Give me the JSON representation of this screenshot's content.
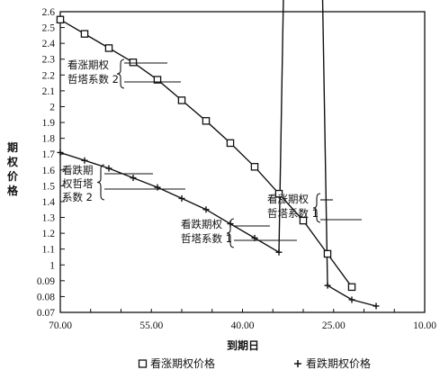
{
  "chart_data": {
    "type": "line",
    "x": [
      70,
      65,
      60,
      55,
      50,
      45,
      40,
      35,
      30,
      25,
      20,
      15,
      10
    ],
    "xticks": [
      "70.00",
      "55.00",
      "40.00",
      "25.00",
      "10.00"
    ],
    "xlim": [
      70,
      10
    ],
    "xlabel": "到期日",
    "ylabel": "期权价格",
    "yticks": [
      "0.07",
      "0.08",
      "0.09",
      "1",
      "1.1",
      "1.2",
      "1.3",
      "1.4",
      "1.5",
      "1.6",
      "1.7",
      "1.8",
      "1.9",
      "2",
      "2.1",
      "2.2",
      "2.3",
      "2.4",
      "2.5",
      "2.6"
    ],
    "grid": false,
    "legend_position": "bottom",
    "series": [
      {
        "name": "看涨期权价格",
        "marker": "square",
        "x": [
          70,
          66,
          62,
          58,
          54,
          50,
          46,
          42,
          38,
          34,
          30,
          26,
          22
        ],
        "y": [
          2.55,
          2.46,
          2.37,
          2.28,
          2.17,
          2.04,
          1.91,
          1.77,
          1.62,
          1.45,
          1.28,
          1.07,
          0.086
        ]
      },
      {
        "name": "看跌期权价格",
        "marker": "plus",
        "x": [
          70,
          66,
          62,
          58,
          54,
          50,
          46,
          42,
          38,
          34,
          30,
          26,
          22,
          18
        ],
        "y": [
          1.71,
          1.66,
          1.61,
          1.55,
          1.49,
          1.42,
          1.35,
          1.26,
          1.17,
          1.08,
          0.98,
          0.087,
          0.078,
          0.074
        ]
      }
    ],
    "annotations": [
      {
        "id": "call2",
        "lines": [
          "看涨期权",
          "哲塔系数 2"
        ]
      },
      {
        "id": "put2",
        "lines": [
          "看跌期",
          "权哲塔",
          "系数 2"
        ]
      },
      {
        "id": "call1",
        "lines": [
          "看涨期权",
          "哲塔系数 1"
        ]
      },
      {
        "id": "put1",
        "lines": [
          "看跌期权",
          "哲塔系数 1"
        ]
      }
    ]
  }
}
